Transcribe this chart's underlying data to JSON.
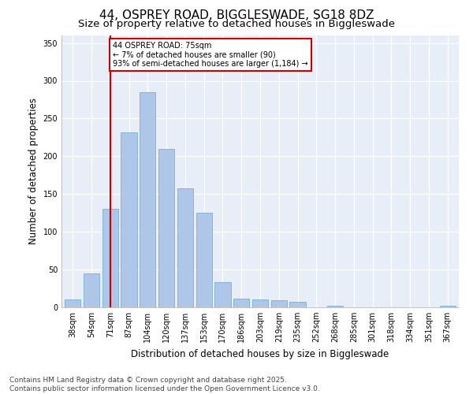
{
  "title": "44, OSPREY ROAD, BIGGLESWADE, SG18 8DZ",
  "subtitle": "Size of property relative to detached houses in Biggleswade",
  "xlabel": "Distribution of detached houses by size in Biggleswade",
  "ylabel": "Number of detached properties",
  "categories": [
    "38sqm",
    "54sqm",
    "71sqm",
    "87sqm",
    "104sqm",
    "120sqm",
    "137sqm",
    "153sqm",
    "170sqm",
    "186sqm",
    "203sqm",
    "219sqm",
    "235sqm",
    "252sqm",
    "268sqm",
    "285sqm",
    "301sqm",
    "318sqm",
    "334sqm",
    "351sqm",
    "367sqm"
  ],
  "values": [
    10,
    45,
    130,
    232,
    285,
    210,
    158,
    125,
    33,
    11,
    10,
    9,
    7,
    0,
    2,
    0,
    0,
    0,
    0,
    0,
    2
  ],
  "bar_color": "#aec6e8",
  "bar_edge_color": "#7aafd4",
  "vline_x_index": 2,
  "vline_color": "#cc0000",
  "annotation_line1": "44 OSPREY ROAD: 75sqm",
  "annotation_line2": "← 7% of detached houses are smaller (90)",
  "annotation_line3": "93% of semi-detached houses are larger (1,184) →",
  "annotation_box_color": "#ffffff",
  "annotation_box_edge": "#cc0000",
  "ylim": [
    0,
    360
  ],
  "yticks": [
    0,
    50,
    100,
    150,
    200,
    250,
    300,
    350
  ],
  "footer_line1": "Contains HM Land Registry data © Crown copyright and database right 2025.",
  "footer_line2": "Contains public sector information licensed under the Open Government Licence v3.0.",
  "bg_color": "#e8eef8",
  "plot_bg_color": "#e8eef8",
  "title_fontsize": 11,
  "subtitle_fontsize": 9.5,
  "tick_fontsize": 7,
  "axis_label_fontsize": 8.5,
  "footer_fontsize": 6.5
}
